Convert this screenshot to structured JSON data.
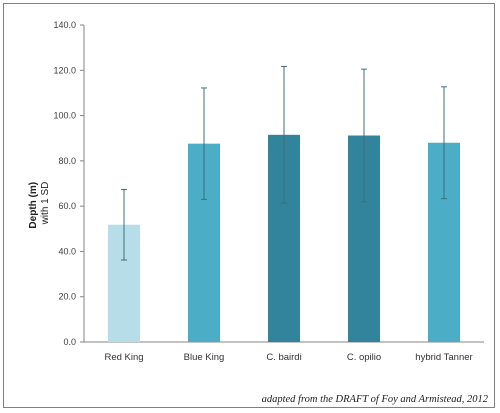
{
  "chart_data": {
    "type": "bar",
    "categories": [
      "Red King",
      "Blue King",
      "C. bairdi",
      "C. opilio",
      "hybrid Tanner"
    ],
    "values": [
      51.8,
      87.6,
      91.5,
      91.2,
      88.0
    ],
    "error_sd": [
      15.6,
      24.6,
      30.2,
      29.3,
      24.7
    ],
    "colors": [
      "#b7dde9",
      "#4badc6",
      "#31849b",
      "#31849b",
      "#4badc6"
    ],
    "ylabel_line1": "Depth (m)",
    "ylabel_line2": "with 1 SD",
    "ylim": [
      0,
      140
    ],
    "yticks": [
      "0.0",
      "20.0",
      "40.0",
      "60.0",
      "80.0",
      "100.0",
      "120.0",
      "140.0"
    ],
    "grid": false,
    "legend": "none"
  },
  "caption": "adapted from the DRAFT of Foy and Armistead, 2012"
}
